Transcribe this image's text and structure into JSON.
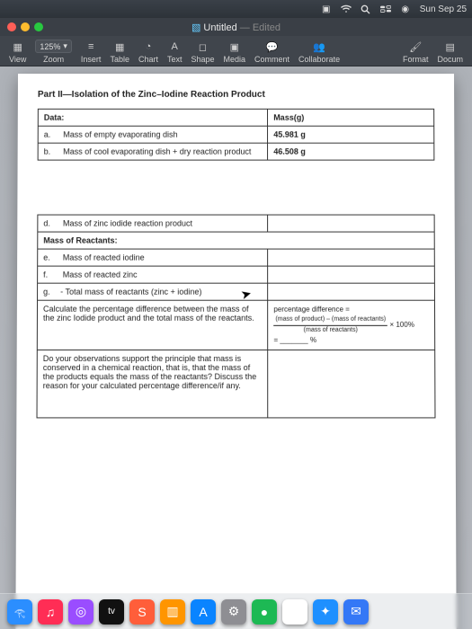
{
  "menubar": {
    "date": "Sun Sep 25"
  },
  "window": {
    "title": "Untitled",
    "edited": "— Edited"
  },
  "toolbar": {
    "zoom": "125%",
    "items": [
      "View",
      "Zoom",
      "Insert",
      "Table",
      "Chart",
      "Text",
      "Shape",
      "Media",
      "Comment",
      "Collaborate",
      "Format",
      "Docum"
    ]
  },
  "doc": {
    "section_title": "Part II—Isolation of the Zinc–Iodine Reaction Product",
    "t1": {
      "h1": "Data:",
      "h2": "Mass(g)",
      "rows": [
        {
          "lbl": "a.",
          "text": "Mass of empty evaporating dish",
          "val": "45.981 g"
        },
        {
          "lbl": "b.",
          "text": "Mass of cool evaporating dish + dry reaction product",
          "val": "46.508 g"
        }
      ]
    },
    "t2": {
      "rows": [
        {
          "lbl": "d.",
          "text": "Mass of zinc iodide reaction product"
        }
      ],
      "subhead": "Mass of Reactants:",
      "rows2": [
        {
          "lbl": "e.",
          "text": "Mass of reacted iodine"
        },
        {
          "lbl": "f.",
          "text": "Mass of reacted zinc"
        },
        {
          "lbl": "g.",
          "text": "- Total mass of reactants (zinc + iodine)"
        }
      ],
      "calc_label": "Calculate the percentage difference between the mass of the zinc Iodide product and the total mass of the reactants.",
      "formula_lead": "percentage difference =",
      "formula_num": "(mass of product) – (mass of reactants)",
      "formula_den": "(mass of reactants)",
      "formula_tail": "× 100%",
      "blank_pct": "= _______ %",
      "discuss": "Do your observations support the principle that mass is conserved in a chemical reaction, that is, that the mass of the products equals the mass of the reactants? Discuss the reason for your calculated percentage difference/if any."
    }
  },
  "dock": {
    "apps": [
      {
        "name": "finder",
        "bg": "#2b8eff",
        "glyph": "𓂀"
      },
      {
        "name": "music",
        "bg": "#ff2d55",
        "glyph": "♫"
      },
      {
        "name": "podcasts",
        "bg": "#9a4dff",
        "glyph": "◎"
      },
      {
        "name": "appletv",
        "bg": "#111",
        "glyph": "tv"
      },
      {
        "name": "shortcuts",
        "bg": "#ff5e3a",
        "glyph": "S"
      },
      {
        "name": "books",
        "bg": "#ff9500",
        "glyph": "▥"
      },
      {
        "name": "appstore",
        "bg": "#0a84ff",
        "glyph": "A"
      },
      {
        "name": "sys",
        "bg": "#8e8e93",
        "glyph": "⚙"
      },
      {
        "name": "spotify",
        "bg": "#1db954",
        "glyph": "●"
      },
      {
        "name": "chrome",
        "bg": "#fff",
        "glyph": "◉"
      },
      {
        "name": "safari",
        "bg": "#1e90ff",
        "glyph": "✦"
      },
      {
        "name": "mail",
        "bg": "#3478f6",
        "glyph": "✉"
      }
    ]
  }
}
